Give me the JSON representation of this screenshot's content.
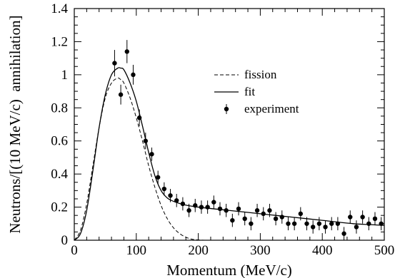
{
  "chart_data": {
    "type": "line",
    "title": "",
    "xlabel": "Momentum (MeV/c)",
    "ylabel": "Neutrons/[(10 MeV/c)  annihilation]",
    "xlim": [
      0,
      500
    ],
    "ylim": [
      0,
      1.4
    ],
    "xticks": [
      "0",
      "100",
      "200",
      "300",
      "400",
      "500"
    ],
    "yticks": [
      "0",
      "0.2",
      "0.4",
      "0.6",
      "0.8",
      "1",
      "1.2",
      "1.4"
    ],
    "grid": false,
    "legend_position": "top-right",
    "legend": {
      "fission": "fission",
      "fit": "fit",
      "experiment": "experiment"
    },
    "series": [
      {
        "name": "fission",
        "style": "dashed",
        "x": [
          0,
          10,
          20,
          30,
          40,
          50,
          60,
          70,
          75,
          80,
          90,
          100,
          110,
          120,
          130,
          140,
          150,
          160,
          170,
          180,
          190,
          200,
          210
        ],
        "y": [
          0,
          0.06,
          0.22,
          0.45,
          0.68,
          0.86,
          0.95,
          0.98,
          0.97,
          0.95,
          0.86,
          0.74,
          0.6,
          0.45,
          0.32,
          0.21,
          0.13,
          0.075,
          0.04,
          0.018,
          0.006,
          0.002,
          0
        ]
      },
      {
        "name": "fit",
        "style": "solid",
        "x": [
          0,
          10,
          20,
          30,
          40,
          50,
          60,
          70,
          75,
          80,
          90,
          100,
          110,
          120,
          130,
          140,
          150,
          160,
          170,
          180,
          200,
          250,
          300,
          350,
          400,
          450,
          500
        ],
        "y": [
          0,
          0.04,
          0.18,
          0.42,
          0.68,
          0.88,
          1.0,
          1.04,
          1.04,
          1.03,
          0.95,
          0.84,
          0.69,
          0.53,
          0.39,
          0.3,
          0.255,
          0.235,
          0.222,
          0.212,
          0.2,
          0.18,
          0.16,
          0.14,
          0.12,
          0.1,
          0.09
        ]
      },
      {
        "name": "experiment",
        "style": "points",
        "x": [
          65,
          75,
          85,
          95,
          105,
          115,
          125,
          135,
          145,
          155,
          165,
          175,
          185,
          195,
          205,
          215,
          225,
          235,
          245,
          255,
          265,
          275,
          285,
          295,
          305,
          315,
          325,
          335,
          345,
          355,
          365,
          375,
          385,
          395,
          405,
          415,
          425,
          435,
          445,
          455,
          465,
          475,
          485,
          495
        ],
        "y": [
          1.07,
          0.88,
          1.14,
          1.0,
          0.74,
          0.6,
          0.52,
          0.38,
          0.31,
          0.27,
          0.24,
          0.22,
          0.18,
          0.21,
          0.2,
          0.2,
          0.23,
          0.19,
          0.18,
          0.12,
          0.19,
          0.13,
          0.1,
          0.18,
          0.16,
          0.18,
          0.13,
          0.14,
          0.1,
          0.1,
          0.16,
          0.1,
          0.08,
          0.1,
          0.08,
          0.1,
          0.1,
          0.04,
          0.14,
          0.08,
          0.14,
          0.1,
          0.13,
          0.1
        ],
        "err": [
          0.08,
          0.06,
          0.07,
          0.06,
          0.05,
          0.05,
          0.04,
          0.04,
          0.04,
          0.04,
          0.04,
          0.04,
          0.04,
          0.04,
          0.04,
          0.04,
          0.04,
          0.04,
          0.04,
          0.04,
          0.04,
          0.04,
          0.04,
          0.04,
          0.04,
          0.04,
          0.04,
          0.04,
          0.04,
          0.04,
          0.04,
          0.04,
          0.04,
          0.04,
          0.04,
          0.04,
          0.04,
          0.04,
          0.04,
          0.04,
          0.04,
          0.04,
          0.04,
          0.04
        ]
      }
    ]
  }
}
